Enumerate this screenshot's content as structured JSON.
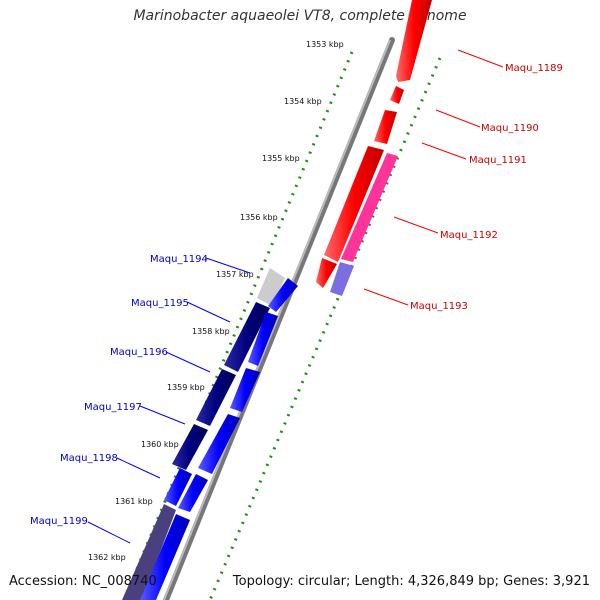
{
  "title": "Marinobacter aquaeolei VT8, complete genome",
  "accession": "Accession: NC_008740",
  "topology": "Topology: circular; Length: 4,326,849 bp; Genes: 3,921",
  "ticks": [
    "1353 kbp",
    "1354 kbp",
    "1355 kbp",
    "1356 kbp",
    "1357 kbp",
    "1358 kbp",
    "1359 kbp",
    "1360 kbp",
    "1361 kbp",
    "1362 kbp"
  ],
  "forward_genes": [
    "Maqu_1189",
    "Maqu_1190",
    "Maqu_1191",
    "Maqu_1192",
    "Maqu_1193"
  ],
  "reverse_genes": [
    "Maqu_1194",
    "Maqu_1195",
    "Maqu_1196",
    "Maqu_1197",
    "Maqu_1198",
    "Maqu_1199"
  ],
  "colors": {
    "forward": "#ff0000",
    "forward_label": "#cc0000",
    "reverse": "#0000ff",
    "reverse_dark": "#000080",
    "reverse_label": "#0000cc",
    "pink": "#ff3399",
    "tick": "#228b22",
    "backbone": "#888888"
  }
}
